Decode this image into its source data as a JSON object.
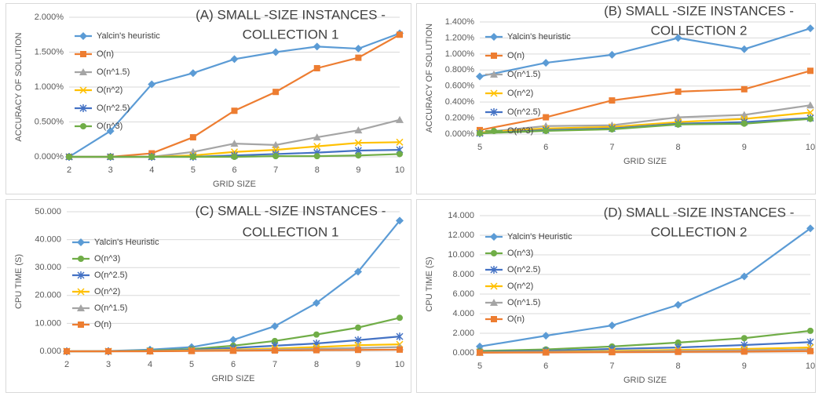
{
  "chart_data": [
    {
      "type": "line",
      "title": [
        "(A) SMALL  -SIZE INSTANCES    -",
        "COLLECTION 1"
      ],
      "x_label": "GRID SIZE",
      "y_label": "ACCURACY OF SOLUTION",
      "categories": [
        "2",
        "3",
        "4",
        "5",
        "6",
        "7",
        "8",
        "9",
        "10"
      ],
      "ylim": [
        0,
        2
      ],
      "yticks": [
        {
          "value": 0,
          "label": "0.000%"
        },
        {
          "value": 0.5,
          "label": "0.500%"
        },
        {
          "value": 1,
          "label": "1.000%"
        },
        {
          "value": 1.5,
          "label": "1.500%"
        },
        {
          "value": 2,
          "label": "2.000%"
        }
      ],
      "grid": true,
      "series": [
        {
          "name": "Yalcin's heuristic",
          "color": "#5b9bd5",
          "marker": "diamond",
          "values": [
            0,
            0.37,
            1.04,
            1.2,
            1.4,
            1.5,
            1.58,
            1.55,
            1.77
          ]
        },
        {
          "name": "O(n)",
          "color": "#ed7d31",
          "marker": "square",
          "values": [
            0,
            0,
            0.05,
            0.28,
            0.66,
            0.93,
            1.27,
            1.42,
            1.75
          ]
        },
        {
          "name": "O(n^1.5)",
          "color": "#a5a5a5",
          "marker": "triangle",
          "values": [
            0,
            0,
            0,
            0.07,
            0.19,
            0.17,
            0.28,
            0.38,
            0.53
          ]
        },
        {
          "name": "O(n^2)",
          "color": "#ffc000",
          "marker": "x",
          "values": [
            0,
            0,
            0,
            0.02,
            0.07,
            0.1,
            0.15,
            0.2,
            0.21
          ]
        },
        {
          "name": "O(n^2.5)",
          "color": "#4472c4",
          "marker": "star",
          "values": [
            0,
            0,
            0,
            0,
            0.02,
            0.04,
            0.06,
            0.09,
            0.1
          ]
        },
        {
          "name": "O(n^3)",
          "color": "#70ad47",
          "marker": "circle",
          "values": [
            0,
            0,
            0,
            0,
            0,
            0.01,
            0.01,
            0.02,
            0.04
          ]
        }
      ]
    },
    {
      "type": "line",
      "title": [
        "(B) SMALL  -SIZE INSTANCES    -",
        "COLLECTION 2"
      ],
      "x_label": "GRID SIZE",
      "y_label": "ACCURACY OF SOLUTION",
      "categories": [
        "5",
        "6",
        "7",
        "8",
        "9",
        "10"
      ],
      "ylim": [
        0,
        1.4
      ],
      "yticks": [
        {
          "value": 0,
          "label": "0.000%"
        },
        {
          "value": 0.2,
          "label": "0.200%"
        },
        {
          "value": 0.4,
          "label": "0.400%"
        },
        {
          "value": 0.6,
          "label": "0.600%"
        },
        {
          "value": 0.8,
          "label": "0.800%"
        },
        {
          "value": 1,
          "label": "1.000%"
        },
        {
          "value": 1.2,
          "label": "1.200%"
        },
        {
          "value": 1.4,
          "label": "1.400%"
        }
      ],
      "grid": true,
      "series": [
        {
          "name": "Yalcin's heuristic",
          "color": "#5b9bd5",
          "marker": "diamond",
          "values": [
            0.72,
            0.89,
            0.99,
            1.2,
            1.06,
            1.32
          ]
        },
        {
          "name": "O(n)",
          "color": "#ed7d31",
          "marker": "square",
          "values": [
            0.05,
            0.21,
            0.42,
            0.53,
            0.56,
            0.79
          ]
        },
        {
          "name": "O(n^1.5)",
          "color": "#a5a5a5",
          "marker": "triangle",
          "values": [
            0.02,
            0.1,
            0.11,
            0.21,
            0.24,
            0.36
          ]
        },
        {
          "name": "O(n^2)",
          "color": "#ffc000",
          "marker": "x",
          "values": [
            0.02,
            0.07,
            0.09,
            0.15,
            0.19,
            0.27
          ]
        },
        {
          "name": "O(n^2.5)",
          "color": "#4472c4",
          "marker": "star",
          "values": [
            0.01,
            0.05,
            0.07,
            0.13,
            0.15,
            0.2
          ]
        },
        {
          "name": "O(n^3)",
          "color": "#70ad47",
          "marker": "circle",
          "values": [
            0.01,
            0.04,
            0.06,
            0.12,
            0.13,
            0.19
          ]
        }
      ]
    },
    {
      "type": "line",
      "title": [
        "(C) SMALL  -SIZE INSTANCES    -",
        "COLLECTION 1"
      ],
      "x_label": "GRID SIZE",
      "y_label": "CPU TIME (S)",
      "categories": [
        "2",
        "3",
        "4",
        "5",
        "6",
        "7",
        "8",
        "9",
        "10"
      ],
      "ylim": [
        0,
        50
      ],
      "yticks": [
        {
          "value": 0,
          "label": "0.000"
        },
        {
          "value": 10,
          "label": "10.000"
        },
        {
          "value": 20,
          "label": "20.000"
        },
        {
          "value": 30,
          "label": "30.000"
        },
        {
          "value": 40,
          "label": "40.000"
        },
        {
          "value": 50,
          "label": "50.000"
        }
      ],
      "grid": true,
      "series": [
        {
          "name": "Yalcin's Heuristic",
          "color": "#5b9bd5",
          "marker": "diamond",
          "values": [
            0,
            0.1,
            0.6,
            1.5,
            4.1,
            9,
            17.3,
            28.5,
            46.8
          ]
        },
        {
          "name": "O(n^3)",
          "color": "#70ad47",
          "marker": "circle",
          "values": [
            0,
            0,
            0.3,
            0.8,
            2,
            3.7,
            6,
            8.5,
            12
          ]
        },
        {
          "name": "O(n^2.5)",
          "color": "#4472c4",
          "marker": "star",
          "values": [
            0,
            0,
            0.2,
            0.5,
            1.2,
            2,
            2.8,
            4,
            5.3
          ]
        },
        {
          "name": "O(n^2)",
          "color": "#ffc000",
          "marker": "x",
          "values": [
            0,
            0,
            0.1,
            0.3,
            0.6,
            1,
            1.5,
            2.2,
            2.5
          ]
        },
        {
          "name": "O(n^1.5)",
          "color": "#a5a5a5",
          "marker": "triangle",
          "values": [
            0,
            0,
            0,
            0.2,
            0.4,
            0.6,
            0.9,
            1.2,
            1.5
          ]
        },
        {
          "name": "O(n)",
          "color": "#ed7d31",
          "marker": "square",
          "values": [
            0,
            0,
            0,
            0.1,
            0.2,
            0.3,
            0.4,
            0.5,
            0.6
          ]
        }
      ]
    },
    {
      "type": "line",
      "title": [
        "(D) SMALL  -SIZE INSTANCES    -",
        "COLLECTION 2"
      ],
      "x_label": "GRID SIZE",
      "y_label": "CPU TIME (S)",
      "categories": [
        "5",
        "6",
        "7",
        "8",
        "9",
        "10"
      ],
      "ylim": [
        0,
        14
      ],
      "yticks": [
        {
          "value": 0,
          "label": "0.000"
        },
        {
          "value": 2,
          "label": "2.000"
        },
        {
          "value": 4,
          "label": "4.000"
        },
        {
          "value": 6,
          "label": "6.000"
        },
        {
          "value": 8,
          "label": "8.000"
        },
        {
          "value": 10,
          "label": "10.000"
        },
        {
          "value": 12,
          "label": "12.000"
        },
        {
          "value": 14,
          "label": "14.000"
        }
      ],
      "grid": true,
      "series": [
        {
          "name": "Yalcin's Heuristic",
          "color": "#5b9bd5",
          "marker": "diamond",
          "values": [
            0.65,
            1.75,
            2.8,
            4.9,
            7.8,
            12.7
          ]
        },
        {
          "name": "O(n^3)",
          "color": "#70ad47",
          "marker": "circle",
          "values": [
            0.2,
            0.35,
            0.65,
            1.05,
            1.5,
            2.25
          ]
        },
        {
          "name": "O(n^2.5)",
          "color": "#4472c4",
          "marker": "star",
          "values": [
            0.1,
            0.2,
            0.4,
            0.55,
            0.8,
            1.1
          ]
        },
        {
          "name": "O(n^2)",
          "color": "#ffc000",
          "marker": "x",
          "values": [
            0.05,
            0.1,
            0.2,
            0.3,
            0.4,
            0.55
          ]
        },
        {
          "name": "O(n^1.5)",
          "color": "#a5a5a5",
          "marker": "triangle",
          "values": [
            0.03,
            0.07,
            0.12,
            0.2,
            0.25,
            0.35
          ]
        },
        {
          "name": "O(n)",
          "color": "#ed7d31",
          "marker": "square",
          "values": [
            0.02,
            0.04,
            0.07,
            0.1,
            0.13,
            0.18
          ]
        }
      ]
    }
  ]
}
